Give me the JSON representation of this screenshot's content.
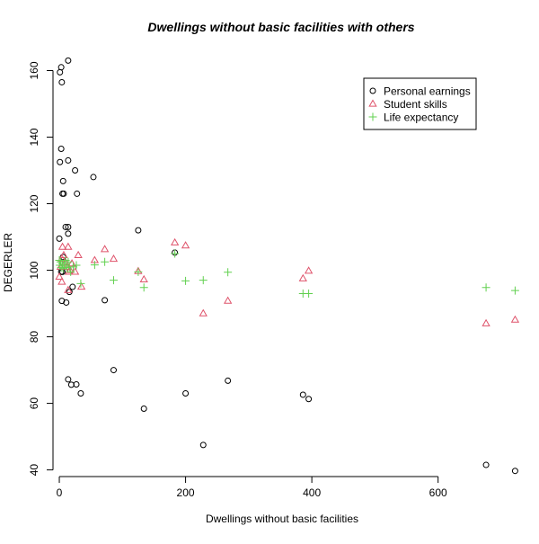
{
  "chart_data": {
    "type": "scatter",
    "title": "Dwellings without basic facilities with others",
    "xlabel": "Dwellings without basic facilities",
    "ylabel": "DEGERLER",
    "xlim": [
      -10,
      720
    ],
    "ylim": [
      38,
      165
    ],
    "x_ticks": [
      0,
      200,
      400,
      600
    ],
    "y_ticks": [
      40,
      60,
      80,
      100,
      120,
      140,
      160
    ],
    "grid": false,
    "legend_position": "top-right",
    "series": [
      {
        "name": "Personal earnings",
        "marker": "circle",
        "color": "#000000",
        "points": [
          [
            1,
            159.5
          ],
          [
            3,
            161
          ],
          [
            4,
            156.5
          ],
          [
            14,
            163
          ],
          [
            3,
            136.5
          ],
          [
            1,
            132.5
          ],
          [
            14,
            133
          ],
          [
            25,
            130
          ],
          [
            54,
            128
          ],
          [
            6,
            126.8
          ],
          [
            5,
            123
          ],
          [
            7,
            123
          ],
          [
            28,
            123
          ],
          [
            10,
            113
          ],
          [
            14,
            113
          ],
          [
            14,
            111
          ],
          [
            125,
            112
          ],
          [
            0,
            109.5
          ],
          [
            6,
            104
          ],
          [
            183,
            105.3
          ],
          [
            3,
            99.5
          ],
          [
            5,
            99.5
          ],
          [
            21,
            95
          ],
          [
            16,
            93.5
          ],
          [
            4,
            90.8
          ],
          [
            11,
            90.3
          ],
          [
            72,
            91
          ],
          [
            86,
            70
          ],
          [
            14,
            67.2
          ],
          [
            19,
            65.6
          ],
          [
            27,
            65.7
          ],
          [
            34,
            63
          ],
          [
            200,
            63
          ],
          [
            267,
            66.8
          ],
          [
            386,
            62.6
          ],
          [
            395,
            61.3
          ],
          [
            134,
            58.4
          ],
          [
            228,
            47.5
          ],
          [
            676,
            41.5
          ],
          [
            722,
            39.7
          ]
        ]
      },
      {
        "name": "Student skills",
        "marker": "triangle",
        "color": "#df536b",
        "points": [
          [
            0,
            98
          ],
          [
            2,
            101
          ],
          [
            4,
            103.5
          ],
          [
            5,
            107
          ],
          [
            7,
            104.5
          ],
          [
            10,
            102.3
          ],
          [
            12,
            101
          ],
          [
            14,
            107
          ],
          [
            15,
            99.5
          ],
          [
            17,
            100
          ],
          [
            20,
            102
          ],
          [
            25,
            99.5
          ],
          [
            30,
            104.5
          ],
          [
            35,
            95
          ],
          [
            4,
            96.5
          ],
          [
            14,
            94
          ],
          [
            56,
            103
          ],
          [
            72,
            106.3
          ],
          [
            86,
            103.4
          ],
          [
            125,
            99.7
          ],
          [
            134,
            97.2
          ],
          [
            183,
            108.3
          ],
          [
            200,
            107.4
          ],
          [
            228,
            87
          ],
          [
            267,
            90.8
          ],
          [
            386,
            97.5
          ],
          [
            395,
            99.8
          ],
          [
            676,
            84
          ],
          [
            722,
            85.1
          ]
        ]
      },
      {
        "name": "Life expectancy",
        "marker": "plus",
        "color": "#61d04f",
        "points": [
          [
            0,
            103
          ],
          [
            1,
            101.5
          ],
          [
            2,
            102.5
          ],
          [
            3,
            100.8
          ],
          [
            5,
            102
          ],
          [
            6,
            100.5
          ],
          [
            8,
            101.5
          ],
          [
            10,
            103
          ],
          [
            12,
            100.8
          ],
          [
            14,
            102.5
          ],
          [
            16,
            101
          ],
          [
            18,
            99.5
          ],
          [
            22,
            101
          ],
          [
            27,
            101.5
          ],
          [
            34,
            96
          ],
          [
            56,
            101.6
          ],
          [
            72,
            102.5
          ],
          [
            86,
            97
          ],
          [
            125,
            99.5
          ],
          [
            134,
            94.8
          ],
          [
            183,
            105
          ],
          [
            200,
            96.8
          ],
          [
            228,
            97
          ],
          [
            267,
            99.4
          ],
          [
            386,
            93
          ],
          [
            395,
            93
          ],
          [
            676,
            94.8
          ],
          [
            722,
            93.9
          ]
        ]
      }
    ]
  }
}
